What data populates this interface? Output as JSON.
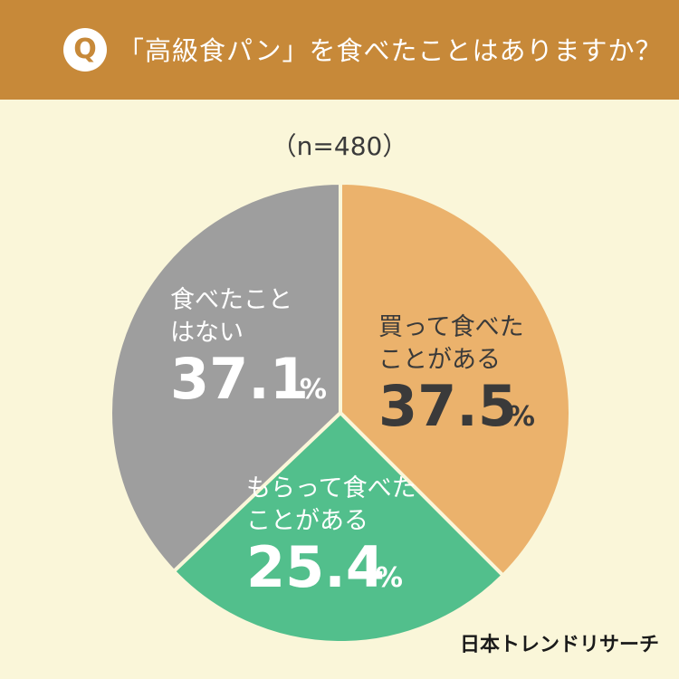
{
  "header": {
    "badge": "Q",
    "question": "「高級食パン」を食べたことはありますか？"
  },
  "sample_size": "（n=480）",
  "brand": "日本トレンドリサーチ",
  "colors": {
    "header_bg": "#c78939",
    "page_bg": "#faf6d9",
    "slice_bought": "#ebb26c",
    "slice_received": "#52bf8c",
    "slice_never": "#9e9e9e"
  },
  "chart_data": {
    "type": "pie",
    "start_angle_deg": 0,
    "direction": "clockwise",
    "slices": [
      {
        "label_line1": "買って食べた",
        "label_line2": "ことがある",
        "value": 37.5,
        "value_text": "37.5",
        "unit": "%",
        "color": "#ebb26c",
        "text_color": "#3a3a3a"
      },
      {
        "label_line1": "もらって食べた",
        "label_line2": "ことがある",
        "value": 25.4,
        "value_text": "25.4",
        "unit": "%",
        "color": "#52bf8c",
        "text_color": "#ffffff"
      },
      {
        "label_line1": "食べたこと",
        "label_line2": "はない",
        "value": 37.1,
        "value_text": "37.1",
        "unit": "%",
        "color": "#9e9e9e",
        "text_color": "#ffffff"
      }
    ]
  }
}
